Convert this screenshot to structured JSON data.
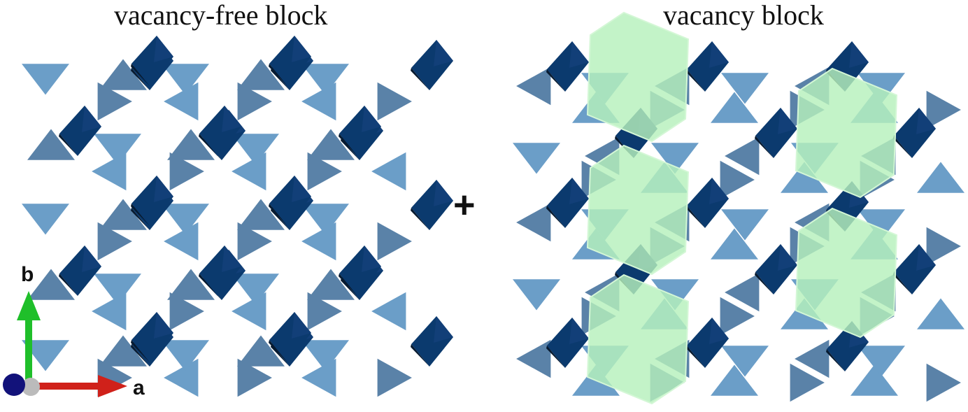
{
  "titles": {
    "left": "vacancy-free block",
    "right": "vacancy block"
  },
  "operator": "+",
  "axes": {
    "b_label": "b",
    "a_label": "a"
  },
  "colors": {
    "octahedron_dark": "#0b3a6e",
    "octahedron_mid": "#123f78",
    "tetrahedron_light": "#6b9ec8",
    "tetrahedron_dark": "#5a82a8",
    "vacancy_cage": "#b6f0bc",
    "axis_b": "#1fbf2a",
    "axis_a": "#d0211a",
    "axis_c": "#12127a"
  }
}
